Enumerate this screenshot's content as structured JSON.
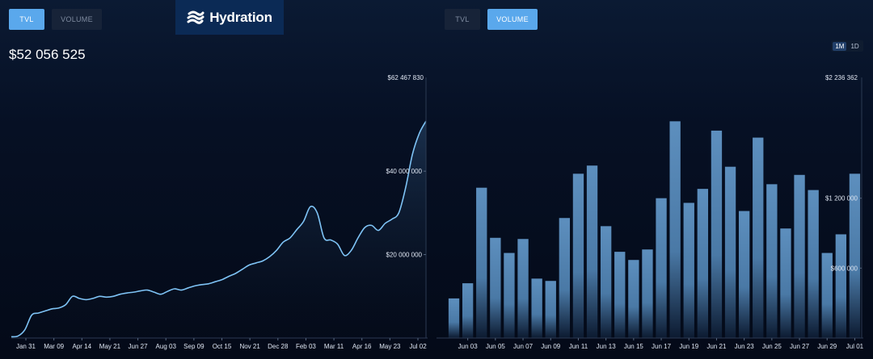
{
  "brand": {
    "name": "Hydration"
  },
  "left_panel": {
    "tabs": [
      {
        "label": "TVL",
        "active": true
      },
      {
        "label": "VOLUME",
        "active": false
      }
    ],
    "current_value": "$52 056 525"
  },
  "right_panel": {
    "tabs": [
      {
        "label": "TVL",
        "active": false
      },
      {
        "label": "VOLUME",
        "active": true
      }
    ],
    "range_options": [
      {
        "label": "1M",
        "active": true
      },
      {
        "label": "1D",
        "active": false
      }
    ]
  },
  "colors": {
    "accent": "#5aa8ec",
    "line": "#7ec3f5",
    "bar": "#5a8dbd"
  },
  "chart_data": [
    {
      "type": "area",
      "title": "TVL",
      "y_max_label": "$62 467 830",
      "y_tick_labels": [
        "$40 000 000",
        "$20 000 000"
      ],
      "y_ticks": [
        40000000,
        20000000
      ],
      "ylim": [
        0,
        62467830
      ],
      "x_tick_labels": [
        "Jan 31",
        "Mar 09",
        "Apr 14",
        "May 21",
        "Jun 27",
        "Aug 03",
        "Sep 09",
        "Oct 15",
        "Nov 21",
        "Dec 28",
        "Feb 03",
        "Mar 11",
        "Apr 16",
        "May 23",
        "Jul 02"
      ],
      "grid": false,
      "values": [
        0.3,
        0.5,
        2,
        5.5,
        6,
        6.5,
        7,
        7.2,
        8,
        10,
        9.5,
        9.2,
        9.5,
        10,
        9.8,
        10,
        10.5,
        10.8,
        11,
        11.3,
        11.5,
        11,
        10.5,
        11.2,
        11.8,
        11.5,
        12,
        12.5,
        12.8,
        13,
        13.5,
        14,
        14.8,
        15.5,
        16.5,
        17.5,
        18,
        18.5,
        19.5,
        21,
        23,
        24,
        26,
        28,
        31.5,
        30,
        24,
        23.5,
        22.5,
        19.8,
        21,
        24,
        26.5,
        27,
        25.8,
        27.5,
        28.5,
        30,
        36,
        44,
        49,
        52
      ]
    },
    {
      "type": "bar",
      "title": "VOLUME",
      "y_max_label": "$2 236 362",
      "y_tick_labels": [
        "$1 200 000",
        "$600 000"
      ],
      "y_ticks": [
        1200000,
        600000
      ],
      "ylim": [
        0,
        2236362
      ],
      "x_tick_labels": [
        "Jun 03",
        "Jun 05",
        "Jun 07",
        "Jun 09",
        "Jun 11",
        "Jun 13",
        "Jun 15",
        "Jun 17",
        "Jun 19",
        "Jun 21",
        "Jun 23",
        "Jun 25",
        "Jun 27",
        "Jun 29",
        "Jul 01"
      ],
      "grid": false,
      "values": [
        340000,
        470000,
        1290000,
        860000,
        730000,
        850000,
        510000,
        490000,
        1030000,
        1410000,
        1480000,
        960000,
        740000,
        670000,
        760000,
        1200000,
        1860000,
        1160000,
        1280000,
        1780000,
        1470000,
        1090000,
        1720000,
        1320000,
        940000,
        1400000,
        1270000,
        730000,
        890000,
        1410000
      ]
    }
  ]
}
